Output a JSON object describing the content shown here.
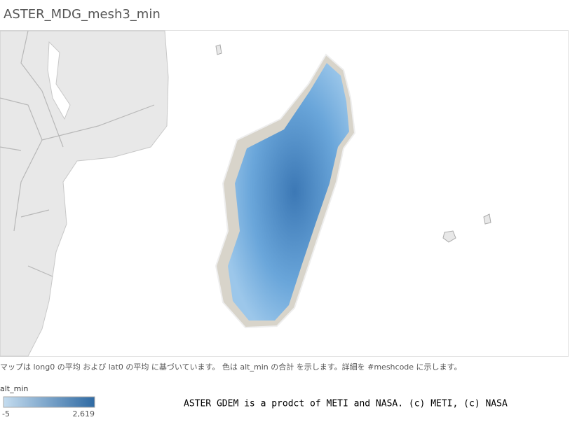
{
  "title": "ASTER_MDG_mesh3_min",
  "caption": "マップは long0 の平均 および lat0 の平均 に基づいています。 色は alt_min の合計 を示します。詳細を #meshcode に示します。",
  "legend": {
    "title": "alt_min",
    "min": -5,
    "max": {
      "value": 2619,
      "label": "2,619"
    }
  },
  "credit": "ASTER GDEM is a prodct of METI and NASA. (c) METI, (c) NASA"
}
